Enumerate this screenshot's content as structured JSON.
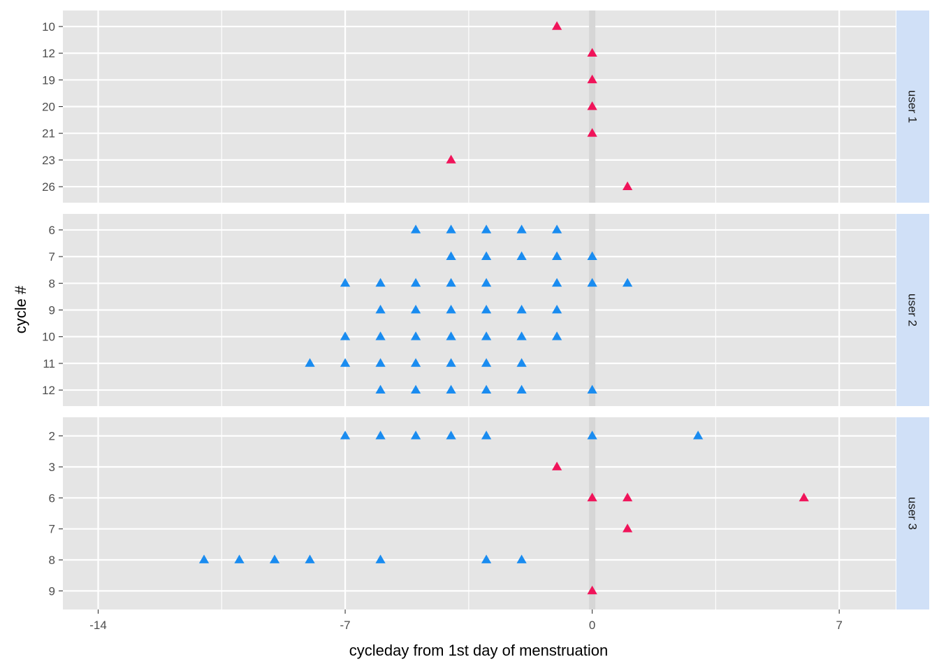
{
  "chart_data": {
    "type": "scatter",
    "xlabel": "cycleday from 1st day of menstruation",
    "ylabel": "cycle #",
    "xlim": [
      -15,
      8.6
    ],
    "x_ticks": [
      -14,
      -7,
      0,
      7
    ],
    "x_tick_labels": [
      "-14",
      "-7",
      "0",
      "7"
    ],
    "grid": true,
    "reference_line_x": 0,
    "marker": "triangle",
    "colors": {
      "pink": "#f0145a",
      "blue": "#1a8cf0",
      "panel_bg": "#e5e5e5",
      "strip_bg": "#d0e0f7",
      "grid": "#ffffff"
    },
    "panels": [
      {
        "strip": "user 1",
        "categories": [
          "10",
          "12",
          "19",
          "20",
          "21",
          "23",
          "26"
        ],
        "points": [
          {
            "x": -1,
            "y": "10",
            "color": "pink"
          },
          {
            "x": 0,
            "y": "12",
            "color": "pink"
          },
          {
            "x": 0,
            "y": "19",
            "color": "pink"
          },
          {
            "x": 0,
            "y": "20",
            "color": "pink"
          },
          {
            "x": 0,
            "y": "21",
            "color": "pink"
          },
          {
            "x": -4,
            "y": "23",
            "color": "pink"
          },
          {
            "x": 1,
            "y": "26",
            "color": "pink"
          }
        ]
      },
      {
        "strip": "user 2",
        "categories": [
          "6",
          "7",
          "8",
          "9",
          "10",
          "11",
          "12"
        ],
        "points": [
          {
            "x": -5,
            "y": "6",
            "color": "blue"
          },
          {
            "x": -4,
            "y": "6",
            "color": "blue"
          },
          {
            "x": -3,
            "y": "6",
            "color": "blue"
          },
          {
            "x": -2,
            "y": "6",
            "color": "blue"
          },
          {
            "x": -1,
            "y": "6",
            "color": "blue"
          },
          {
            "x": -4,
            "y": "7",
            "color": "blue"
          },
          {
            "x": -3,
            "y": "7",
            "color": "blue"
          },
          {
            "x": -2,
            "y": "7",
            "color": "blue"
          },
          {
            "x": -1,
            "y": "7",
            "color": "blue"
          },
          {
            "x": 0,
            "y": "7",
            "color": "blue"
          },
          {
            "x": -7,
            "y": "8",
            "color": "blue"
          },
          {
            "x": -6,
            "y": "8",
            "color": "blue"
          },
          {
            "x": -5,
            "y": "8",
            "color": "blue"
          },
          {
            "x": -4,
            "y": "8",
            "color": "blue"
          },
          {
            "x": -3,
            "y": "8",
            "color": "blue"
          },
          {
            "x": -1,
            "y": "8",
            "color": "blue"
          },
          {
            "x": 0,
            "y": "8",
            "color": "blue"
          },
          {
            "x": 1,
            "y": "8",
            "color": "blue"
          },
          {
            "x": -6,
            "y": "9",
            "color": "blue"
          },
          {
            "x": -5,
            "y": "9",
            "color": "blue"
          },
          {
            "x": -4,
            "y": "9",
            "color": "blue"
          },
          {
            "x": -3,
            "y": "9",
            "color": "blue"
          },
          {
            "x": -2,
            "y": "9",
            "color": "blue"
          },
          {
            "x": -1,
            "y": "9",
            "color": "blue"
          },
          {
            "x": -7,
            "y": "10",
            "color": "blue"
          },
          {
            "x": -6,
            "y": "10",
            "color": "blue"
          },
          {
            "x": -5,
            "y": "10",
            "color": "blue"
          },
          {
            "x": -4,
            "y": "10",
            "color": "blue"
          },
          {
            "x": -3,
            "y": "10",
            "color": "blue"
          },
          {
            "x": -2,
            "y": "10",
            "color": "blue"
          },
          {
            "x": -1,
            "y": "10",
            "color": "blue"
          },
          {
            "x": -8,
            "y": "11",
            "color": "blue"
          },
          {
            "x": -7,
            "y": "11",
            "color": "blue"
          },
          {
            "x": -6,
            "y": "11",
            "color": "blue"
          },
          {
            "x": -5,
            "y": "11",
            "color": "blue"
          },
          {
            "x": -4,
            "y": "11",
            "color": "blue"
          },
          {
            "x": -3,
            "y": "11",
            "color": "blue"
          },
          {
            "x": -2,
            "y": "11",
            "color": "blue"
          },
          {
            "x": -6,
            "y": "12",
            "color": "blue"
          },
          {
            "x": -5,
            "y": "12",
            "color": "blue"
          },
          {
            "x": -4,
            "y": "12",
            "color": "blue"
          },
          {
            "x": -3,
            "y": "12",
            "color": "blue"
          },
          {
            "x": -2,
            "y": "12",
            "color": "blue"
          },
          {
            "x": 0,
            "y": "12",
            "color": "blue"
          }
        ]
      },
      {
        "strip": "user 3",
        "categories": [
          "2",
          "3",
          "6",
          "7",
          "8",
          "9"
        ],
        "points": [
          {
            "x": -7,
            "y": "2",
            "color": "blue"
          },
          {
            "x": -6,
            "y": "2",
            "color": "blue"
          },
          {
            "x": -5,
            "y": "2",
            "color": "blue"
          },
          {
            "x": -4,
            "y": "2",
            "color": "blue"
          },
          {
            "x": -3,
            "y": "2",
            "color": "blue"
          },
          {
            "x": 0,
            "y": "2",
            "color": "blue"
          },
          {
            "x": 3,
            "y": "2",
            "color": "blue"
          },
          {
            "x": -1,
            "y": "3",
            "color": "pink"
          },
          {
            "x": 0,
            "y": "6",
            "color": "pink"
          },
          {
            "x": 1,
            "y": "6",
            "color": "pink"
          },
          {
            "x": 6,
            "y": "6",
            "color": "pink"
          },
          {
            "x": 1,
            "y": "7",
            "color": "pink"
          },
          {
            "x": -11,
            "y": "8",
            "color": "blue"
          },
          {
            "x": -10,
            "y": "8",
            "color": "blue"
          },
          {
            "x": -9,
            "y": "8",
            "color": "blue"
          },
          {
            "x": -8,
            "y": "8",
            "color": "blue"
          },
          {
            "x": -6,
            "y": "8",
            "color": "blue"
          },
          {
            "x": -3,
            "y": "8",
            "color": "blue"
          },
          {
            "x": -2,
            "y": "8",
            "color": "blue"
          },
          {
            "x": 0,
            "y": "9",
            "color": "pink"
          }
        ]
      }
    ]
  }
}
